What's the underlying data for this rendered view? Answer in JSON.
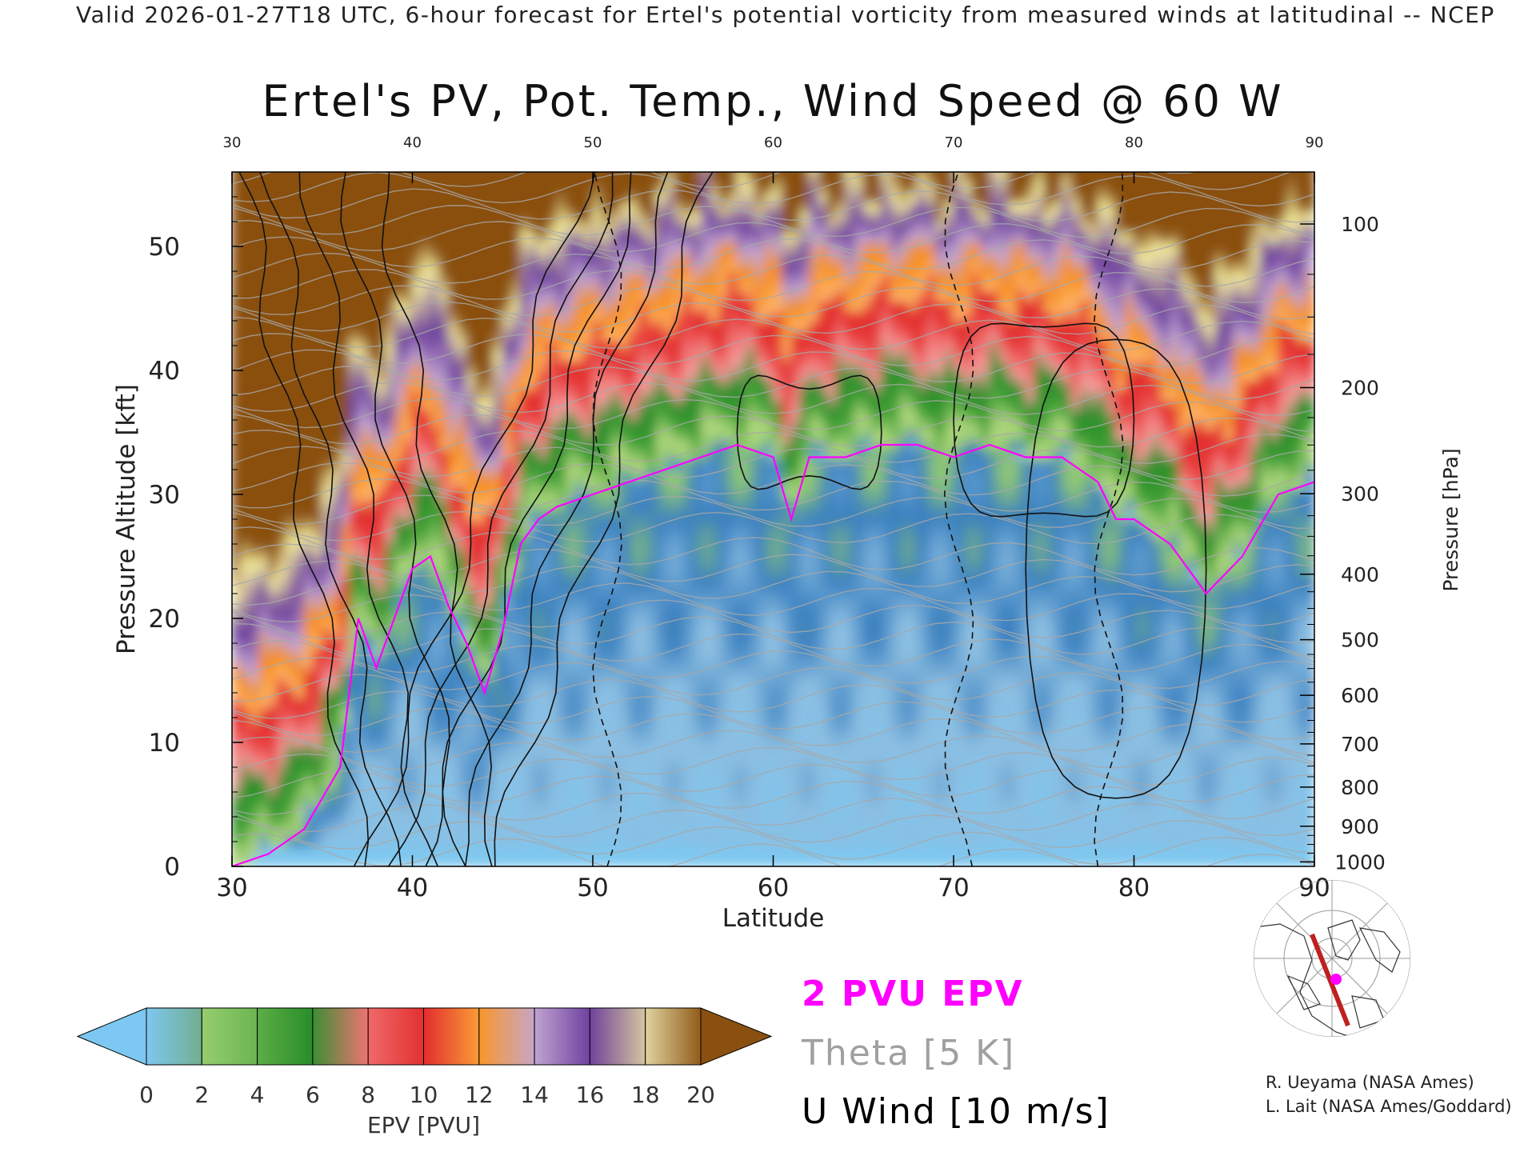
{
  "header": "Valid 2026-01-27T18 UTC, 6-hour forecast for Ertel's potential vorticity from measured winds at latitudinal -- NCEP",
  "credits": [
    "R. Ueyama (NASA Ames)",
    "L. Lait (NASA Ames/Goddard)"
  ],
  "chart_data": {
    "type": "heatmap",
    "title": "Ertel's PV, Pot. Temp., Wind Speed @ 60 W",
    "xlabel": "Latitude",
    "ylabel_left": "Pressure Altitude [kft]",
    "ylabel_right": "Pressure [hPa]",
    "x_range": [
      30,
      90
    ],
    "y_range": [
      0,
      56
    ],
    "x_ticks": [
      30,
      40,
      50,
      60,
      70,
      80,
      90
    ],
    "y_ticks": [
      0,
      10,
      20,
      30,
      40,
      50
    ],
    "pressure_levels_hPa": [
      1000,
      900,
      800,
      700,
      600,
      500,
      400,
      300,
      200,
      100
    ],
    "colorbar": {
      "label": "EPV [PVU]",
      "min": 0,
      "max": 20,
      "step": 2,
      "ticks": [
        0,
        2,
        4,
        6,
        8,
        10,
        12,
        14,
        16,
        18,
        20
      ],
      "colors": [
        "#7cc8f2",
        "#3a80c0",
        "#b2d880",
        "#3a9a2e",
        "#f7a0a0",
        "#e02828",
        "#fdb870",
        "#f88a10",
        "#c4a8d4",
        "#6a3c9c",
        "#f6f0a0",
        "#8a5010"
      ],
      "extend": "both"
    },
    "legend": [
      {
        "label": "2 PVU EPV",
        "color": "#ff00ff"
      },
      {
        "label": "Theta [5 K]",
        "color": "#a0a0a0"
      },
      {
        "label": "U Wind [10 m/s]",
        "color": "#000000"
      }
    ],
    "tropopause_2pvu": {
      "lat": [
        30,
        32,
        34,
        36,
        37,
        38,
        39,
        40,
        41,
        42,
        43,
        44,
        45,
        46,
        47,
        48,
        50,
        52,
        54,
        56,
        58,
        60,
        61,
        62,
        64,
        66,
        68,
        70,
        72,
        74,
        76,
        78,
        79,
        80,
        82,
        84,
        86,
        88,
        90
      ],
      "alt_kft": [
        0,
        1,
        3,
        8,
        20,
        16,
        20,
        24,
        25,
        21,
        18,
        14,
        19,
        26,
        28,
        29,
        30,
        31,
        32,
        33,
        34,
        33,
        28,
        33,
        33,
        34,
        34,
        33,
        34,
        33,
        33,
        31,
        28,
        28,
        26,
        22,
        25,
        30,
        31
      ]
    },
    "zero_wind_lat": [
      50.8,
      70.3,
      78.6
    ]
  },
  "map_inset": {
    "path_start_lat": 30,
    "path_end_lat": 90,
    "longitude": "60 W"
  }
}
